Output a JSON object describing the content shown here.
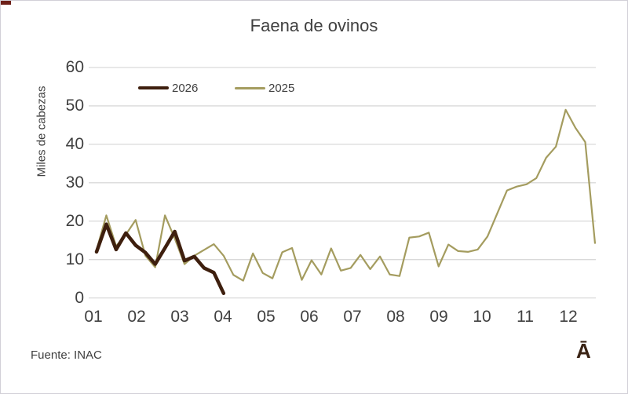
{
  "window": {
    "border_color": "#d2d0d7",
    "corner_accent_color": "#6e2018"
  },
  "chart_data": {
    "type": "line",
    "title": "Faena de ovinos",
    "y_axis_label": "Miles de cabezas",
    "x_axis_tick_labels": [
      "01",
      "02",
      "03",
      "04",
      "05",
      "06",
      "07",
      "08",
      "09",
      "10",
      "11",
      "12"
    ],
    "y_ticks": [
      0,
      10,
      20,
      30,
      40,
      50,
      60
    ],
    "ylim": [
      0,
      60
    ],
    "x_unit": "week-of-year (weekly slaughter data, month labels on axis)",
    "grid": "horizontal",
    "gridline_color": "#d9d9d9",
    "legend_position": "top-left-inside",
    "text_color": "#404040",
    "series": [
      {
        "name": "2025",
        "color": "#a49c5f",
        "stroke_width": 2.2,
        "start_week": 1,
        "values": [
          12.5,
          21.5,
          13.5,
          16.5,
          20.3,
          11.0,
          8.0,
          21.5,
          15.5,
          8.8,
          11.0,
          12.5,
          14.0,
          11.0,
          6.0,
          4.5,
          11.6,
          6.5,
          5.1,
          11.9,
          13.0,
          4.7,
          9.8,
          6.1,
          12.9,
          7.1,
          7.8,
          11.2,
          7.5,
          10.8,
          6.1,
          5.7,
          15.7,
          16.0,
          17.0,
          8.2,
          13.9,
          12.2,
          12.0,
          12.6,
          16.0,
          22.0,
          28.0,
          29.0,
          29.6,
          31.2,
          36.5,
          39.4,
          49.0,
          44.3,
          40.6,
          14.3
        ]
      },
      {
        "name": "2026",
        "color": "#3e1f0e",
        "stroke_width": 4.5,
        "start_week": 1,
        "values": [
          12.0,
          19.2,
          12.6,
          16.9,
          13.7,
          11.8,
          8.8,
          13.0,
          17.3,
          9.7,
          10.8,
          7.8,
          6.6,
          1.2
        ]
      }
    ],
    "legend_order": [
      "2026",
      "2025"
    ]
  },
  "footer": {
    "source": "Fuente: INAC",
    "logo_glyph": "Ā"
  }
}
